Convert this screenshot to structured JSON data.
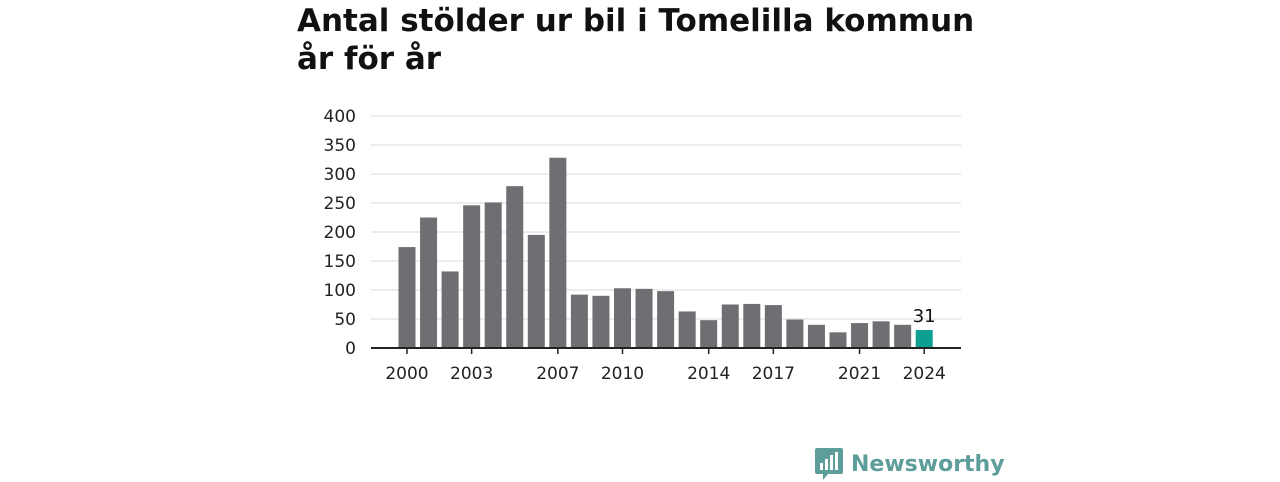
{
  "chart_data": {
    "type": "bar",
    "title": "Antal stölder ur bil i Tomelilla kommun år för år",
    "categories": [
      "2000",
      "2001",
      "2002",
      "2003",
      "2004",
      "2005",
      "2006",
      "2007",
      "2008",
      "2009",
      "2010",
      "2011",
      "2012",
      "2013",
      "2014",
      "2015",
      "2016",
      "2017",
      "2018",
      "2019",
      "2020",
      "2021",
      "2022",
      "2023",
      "2024"
    ],
    "values": [
      174,
      225,
      132,
      246,
      251,
      279,
      195,
      328,
      92,
      90,
      103,
      102,
      98,
      63,
      48,
      75,
      76,
      74,
      49,
      40,
      27,
      43,
      46,
      40,
      31
    ],
    "x_tick_labels": [
      "2000",
      "2003",
      "2007",
      "2010",
      "2014",
      "2017",
      "2021",
      "2024"
    ],
    "y_ticks": [
      0,
      50,
      100,
      150,
      200,
      250,
      300,
      350,
      400
    ],
    "ylim": [
      0,
      400
    ],
    "grid": true,
    "highlight_category": "2024",
    "highlight_label": "31",
    "colors": {
      "bar": "#6e6e73",
      "highlight": "#0e9e92",
      "grid": "#d9d9d9",
      "axis": "#222222"
    }
  },
  "branding": {
    "logo_text": "Newsworthy",
    "logo_icon": "bar-chart-speech-bubble-icon",
    "logo_color": "#5d9e9a"
  }
}
